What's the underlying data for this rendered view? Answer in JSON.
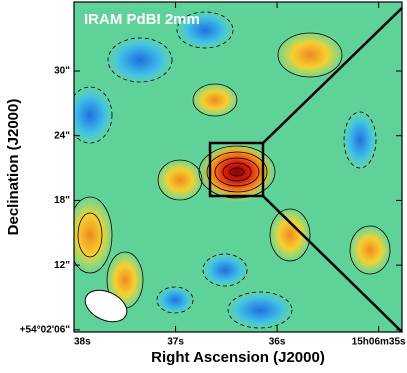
{
  "chart_data": {
    "type": "image",
    "title": "IRAM PdBI 2mm",
    "x_label": "Right Ascension (J2000)",
    "y_label": "Declination (J2000)",
    "xlim": [
      38.0,
      34.77
    ],
    "xticks": [
      {
        "value": 38,
        "label": "38s"
      },
      {
        "value": 37,
        "label": "37s"
      },
      {
        "value": 36,
        "label": "36s"
      },
      {
        "value": 35,
        "label": "15h06m35s"
      }
    ],
    "ylim": [
      5.8,
      36.4
    ],
    "yticks": [
      {
        "value": 6,
        "label": "+54°02'06\""
      },
      {
        "value": 12,
        "label": "12\""
      },
      {
        "value": 18,
        "label": "18\""
      },
      {
        "value": 24,
        "label": "24\""
      },
      {
        "value": 30,
        "label": "30\""
      }
    ]
  }
}
